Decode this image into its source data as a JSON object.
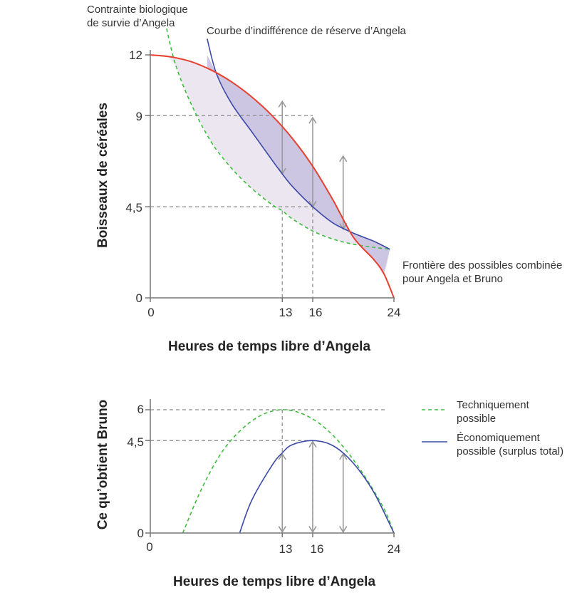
{
  "colors": {
    "frontier": "#e8402f",
    "indifference": "#3b49a6",
    "survival": "#3dbd3d",
    "grid": "#8a8a8a",
    "arrow": "#999999",
    "shade_light": "#ece6f1",
    "shade_dark": "#cdc6e3",
    "axis": "#777777"
  },
  "chart_data": [
    {
      "id": "top",
      "type": "line",
      "xlabel": "Heures de temps libre d’Angela",
      "ylabel": "Boisseaux de céréales",
      "xlim": [
        0,
        24
      ],
      "ylim": [
        0,
        12
      ],
      "x_ticks": [
        "0",
        "13",
        "16",
        "24"
      ],
      "x_tick_values": [
        0,
        13,
        16,
        24
      ],
      "y_ticks": [
        "0",
        "4,5",
        "9",
        "12"
      ],
      "y_tick_values": [
        0,
        4.5,
        9,
        12
      ],
      "series": [
        {
          "name": "Frontière des possibles combinée pour Angela et Bruno",
          "style": "solid",
          "color": "frontier",
          "x": [
            0,
            2,
            4,
            6,
            8,
            10,
            12,
            14,
            16,
            18,
            20,
            22,
            23,
            24
          ],
          "y": [
            12,
            11.9,
            11.67,
            11.25,
            10.67,
            9.92,
            9.0,
            7.87,
            6.5,
            4.83,
            3.0,
            1.9,
            1.2,
            0
          ]
        },
        {
          "name": "Courbe d’indifférence de réserve d’Angela",
          "style": "solid",
          "color": "indifference",
          "x": [
            5.6,
            6.5,
            8,
            10,
            12,
            13,
            14,
            16,
            18,
            20,
            22,
            23.6
          ],
          "y": [
            12.8,
            11.1,
            9.6,
            8.2,
            6.8,
            6.12,
            5.5,
            4.5,
            3.7,
            3.2,
            2.8,
            2.4
          ]
        },
        {
          "name": "Contrainte biologique de survie d’Angela",
          "style": "dashed",
          "color": "survival",
          "x": [
            1.6,
            2.5,
            4,
            6,
            8,
            10,
            12,
            13,
            14,
            16,
            18,
            20,
            22,
            23.6
          ],
          "y": [
            13.3,
            11.5,
            9.6,
            7.7,
            6.4,
            5.4,
            4.6,
            4.3,
            3.9,
            3.3,
            2.9,
            2.65,
            2.5,
            2.4
          ]
        }
      ],
      "reference_lines": [
        {
          "y": 9,
          "to_x": 16
        },
        {
          "y": 4.5,
          "to_x": 16
        },
        {
          "x": 13,
          "from_y": 4.3
        },
        {
          "x": 16,
          "from_y": 4.5
        }
      ],
      "arrows": [
        {
          "x": 13,
          "y1": 6.12,
          "y2": 9.7
        },
        {
          "x": 16,
          "y1": 4.5,
          "y2": 8.9
        },
        {
          "x": 19,
          "y1": 3.4,
          "y2": 7.0
        }
      ],
      "annotations": [
        {
          "line1": "Contrainte biologique",
          "line2": "de survie d’Angela"
        },
        {
          "line1": "Courbe d’indifférence de réserve d’Angela"
        },
        {
          "line1": "Frontière des possibles combinée",
          "line2": "pour Angela et Bruno"
        }
      ]
    },
    {
      "id": "bottom",
      "type": "line",
      "xlabel": "Heures de temps libre d’Angela",
      "ylabel": "Ce qu’obtient Bruno",
      "xlim": [
        0,
        24
      ],
      "ylim": [
        0,
        6
      ],
      "x_ticks": [
        "0",
        "13",
        "16",
        "24"
      ],
      "x_tick_values": [
        0,
        13,
        16,
        24
      ],
      "y_ticks": [
        "0",
        "4,5",
        "6"
      ],
      "y_tick_values": [
        0,
        4.5,
        6
      ],
      "series": [
        {
          "name": "Techniquement possible",
          "style": "dashed",
          "color": "survival",
          "x": [
            3.2,
            5,
            7,
            9,
            11,
            13,
            15,
            17,
            19,
            21,
            23,
            24
          ],
          "y": [
            0.0,
            2.1,
            3.9,
            5.05,
            5.75,
            6.0,
            5.8,
            5.2,
            4.2,
            2.85,
            1.2,
            0
          ]
        },
        {
          "name": "Économiquement possible (surplus total)",
          "style": "solid",
          "color": "indifference",
          "x": [
            8.8,
            10,
            12,
            13,
            14,
            16,
            18,
            20,
            22,
            24
          ],
          "y": [
            0.0,
            1.6,
            3.3,
            3.9,
            4.3,
            4.5,
            4.25,
            3.4,
            2.0,
            0
          ]
        }
      ],
      "reference_lines": [
        {
          "y": 6,
          "to_x": 23.2
        },
        {
          "y": 4.5,
          "to_x": 16
        },
        {
          "x": 13,
          "from_y": 6
        },
        {
          "x": 16,
          "from_y": 4.5
        }
      ],
      "arrows": [
        {
          "x": 13,
          "y1": 0.05,
          "y2": 3.85
        },
        {
          "x": 16,
          "y1": 0.05,
          "y2": 4.45
        },
        {
          "x": 19,
          "y1": 0.05,
          "y2": 3.85
        }
      ],
      "legend": {
        "position": "right",
        "entries": [
          {
            "line1": "Techniquement",
            "line2": "possible",
            "style": "dashed",
            "color": "survival"
          },
          {
            "line1": "Économiquement",
            "line2": "possible (surplus total)",
            "style": "solid",
            "color": "indifference"
          }
        ]
      }
    }
  ]
}
